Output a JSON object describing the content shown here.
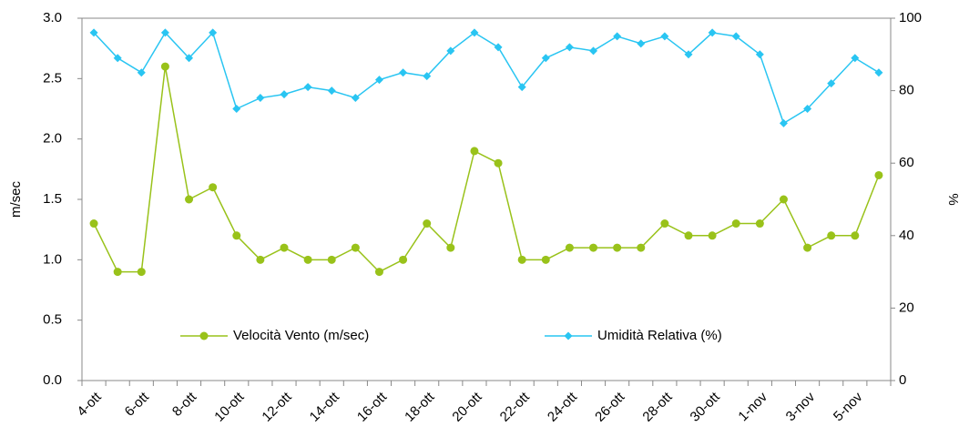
{
  "chart_data": {
    "type": "line",
    "categories": [
      "4-ott",
      null,
      "6-ott",
      null,
      "8-ott",
      null,
      "10-ott",
      null,
      "12-ott",
      null,
      "14-ott",
      null,
      "16-ott",
      null,
      "18-ott",
      null,
      "20-ott",
      null,
      "22-ott",
      null,
      "24-ott",
      null,
      "26-ott",
      null,
      "28-ott",
      null,
      "30-ott",
      null,
      "1-nov",
      null,
      "3-nov",
      null,
      "5-nov",
      null
    ],
    "y_label": "m/sec",
    "y2_label": "%",
    "ylim": [
      0,
      3
    ],
    "yticks": [
      {
        "value": 0,
        "label": "0.0"
      },
      {
        "value": 0.5,
        "label": "0.5"
      },
      {
        "value": 1,
        "label": "1.0"
      },
      {
        "value": 1.5,
        "label": "1.5"
      },
      {
        "value": 2,
        "label": "2.0"
      },
      {
        "value": 2.5,
        "label": "2.5"
      },
      {
        "value": 3,
        "label": "3.0"
      }
    ],
    "y2lim": [
      0,
      100
    ],
    "y2ticks": [
      0,
      20,
      40,
      60,
      80,
      100
    ],
    "grid": false,
    "series": [
      {
        "name": "Velocità Vento (m/sec)",
        "color": "#99c21a",
        "marker": "circle",
        "values": [
          1.3,
          0.9,
          0.9,
          2.6,
          1.5,
          1.6,
          1.2,
          1.0,
          1.1,
          1.0,
          1.0,
          1.1,
          0.9,
          1.0,
          1.3,
          1.1,
          1.9,
          1.8,
          1.0,
          1.0,
          1.1,
          1.1,
          1.1,
          1.1,
          1.3,
          1.2,
          1.2,
          1.3,
          1.3,
          1.5,
          1.1,
          1.2,
          1.2,
          1.7
        ]
      },
      {
        "name": "Umidità Relativa (%)",
        "color": "#29c5f2",
        "marker": "diamond",
        "axis": "y2",
        "values": [
          96,
          89,
          85,
          96,
          89,
          96,
          75,
          78,
          79,
          81,
          80,
          78,
          83,
          85,
          84,
          91,
          96,
          92,
          81,
          89,
          92,
          91,
          95,
          93,
          95,
          90,
          96,
          95,
          90,
          71,
          75,
          82,
          89,
          85
        ]
      }
    ]
  }
}
